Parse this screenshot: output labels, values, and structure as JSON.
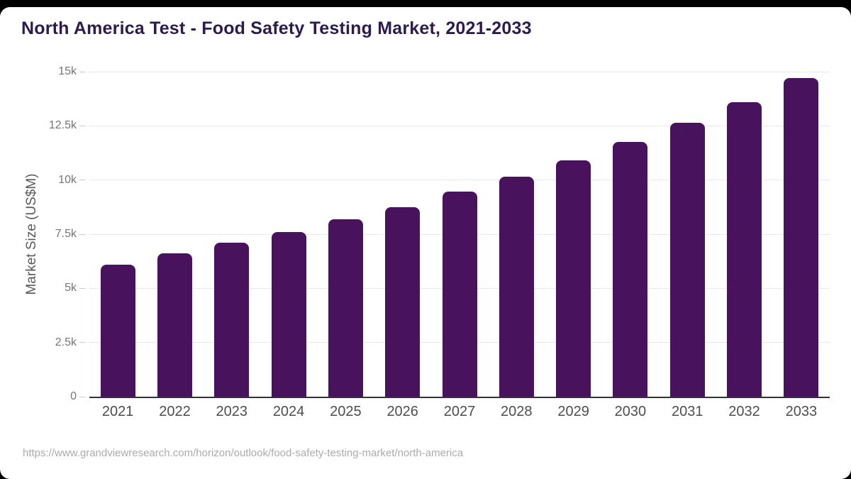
{
  "page": {
    "background_color": "#000000",
    "card_color": "#ffffff"
  },
  "header": {
    "title": "North America Test - Food Safety Testing Market, 2021-2033",
    "title_color": "#2d1b4e"
  },
  "chart_data": {
    "type": "bar",
    "title": "North America Test - Food Safety Testing Market, 2021-2033",
    "categories": [
      "2021",
      "2022",
      "2023",
      "2024",
      "2025",
      "2026",
      "2027",
      "2028",
      "2029",
      "2030",
      "2031",
      "2032",
      "2033"
    ],
    "values": [
      6100,
      6600,
      7100,
      7600,
      8200,
      8750,
      9450,
      10150,
      10900,
      11750,
      12650,
      13600,
      14700
    ],
    "xlabel": "",
    "ylabel": "Market Size (US$M)",
    "ylim": [
      0,
      15000
    ],
    "yticks": [
      {
        "value": 0,
        "label": "0"
      },
      {
        "value": 2500,
        "label": "2.5k"
      },
      {
        "value": 5000,
        "label": "5k"
      },
      {
        "value": 7500,
        "label": "7.5k"
      },
      {
        "value": 10000,
        "label": "10k"
      },
      {
        "value": 12500,
        "label": "12.5k"
      },
      {
        "value": 15000,
        "label": "15k"
      }
    ],
    "grid": true,
    "legend": "none",
    "bar_color": "#48125c",
    "gridline_color": "#e9e9e9",
    "axis_line_color": "#333333",
    "tick_mark_color": "#cccccc",
    "ytick_label_color": "#757575",
    "xtick_label_color": "#4d4d4d",
    "ylabel_color": "#595959"
  },
  "footer": {
    "url": "https://www.grandviewresearch.com/horizon/outlook/food-safety-testing-market/north-america",
    "color": "#ababab"
  }
}
